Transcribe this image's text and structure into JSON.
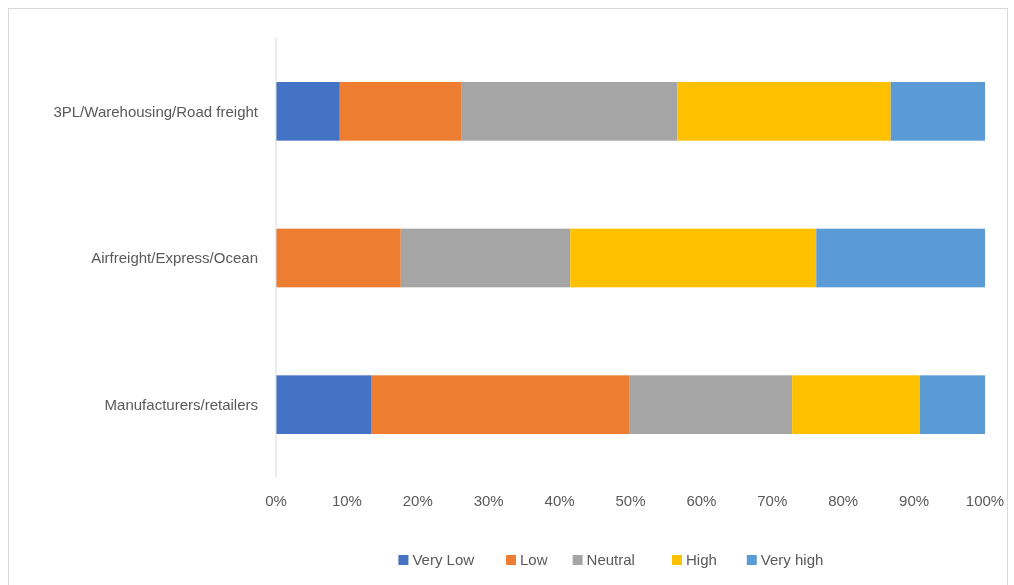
{
  "chart_data": {
    "type": "bar",
    "orientation": "horizontal",
    "stacked": true,
    "categories": [
      "3PL/Warehousing/Road freight",
      "Airfreight/Express/Ocean",
      "Manufacturers/retailers"
    ],
    "series": [
      {
        "name": "Very Low",
        "color": "#4472c4",
        "values": [
          9.0,
          0,
          13.5
        ]
      },
      {
        "name": "Low",
        "color": "#ed7d31",
        "values": [
          17.2,
          17.6,
          36.3
        ]
      },
      {
        "name": "Neutral",
        "color": "#a5a5a5",
        "values": [
          30.4,
          23.9,
          23.0
        ]
      },
      {
        "name": "High",
        "color": "#ffc000",
        "values": [
          30.1,
          34.7,
          18.0
        ]
      },
      {
        "name": "Very high",
        "color": "#5b9bd5",
        "values": [
          13.3,
          23.8,
          9.2
        ]
      }
    ],
    "xlim": [
      0,
      100
    ],
    "xticks": [
      {
        "value": 0,
        "label": "0%"
      },
      {
        "value": 10,
        "label": "10%"
      },
      {
        "value": 20,
        "label": "20%"
      },
      {
        "value": 30,
        "label": "30%"
      },
      {
        "value": 40,
        "label": "40%"
      },
      {
        "value": 50,
        "label": "50%"
      },
      {
        "value": 60,
        "label": "60%"
      },
      {
        "value": 70,
        "label": "70%"
      },
      {
        "value": 80,
        "label": "80%"
      },
      {
        "value": 90,
        "label": "90%"
      },
      {
        "value": 100,
        "label": "100%"
      }
    ],
    "grid": false,
    "legend": "bottom"
  }
}
